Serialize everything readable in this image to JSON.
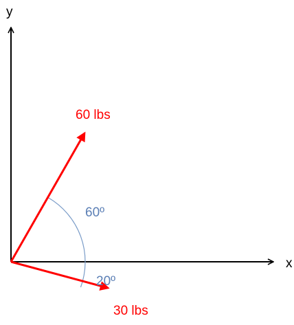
{
  "axes": {
    "y_label": "y",
    "x_label": "x"
  },
  "vectors": [
    {
      "label": "60 lbs"
    },
    {
      "label": "30 lbs"
    }
  ],
  "angles": [
    {
      "label": "60º"
    },
    {
      "label": "20º"
    }
  ]
}
